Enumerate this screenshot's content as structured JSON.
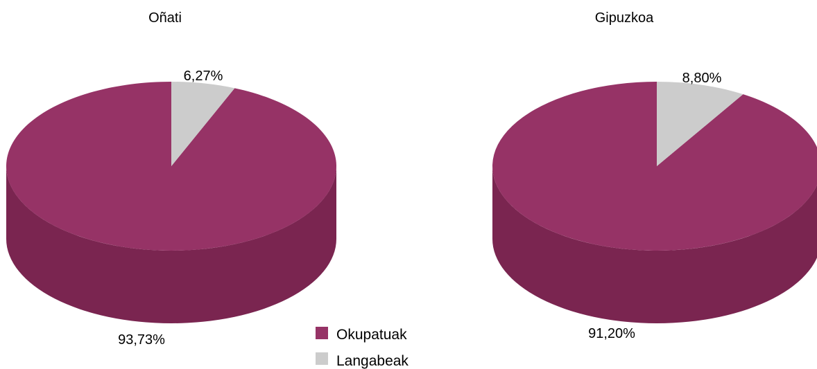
{
  "chart_data": [
    {
      "type": "pie",
      "title": "Oñati",
      "categories": [
        "Langabeak",
        "Okupatuak"
      ],
      "values": [
        6.27,
        93.73
      ],
      "labels": [
        "6,27%",
        "93,73%"
      ]
    },
    {
      "type": "pie",
      "title": "Gipuzkoa",
      "categories": [
        "Langabeak",
        "Okupatuak"
      ],
      "values": [
        8.8,
        91.2
      ],
      "labels": [
        "8,80%",
        "91,20%"
      ]
    }
  ],
  "legend": {
    "placement": "bottom-center",
    "items": [
      {
        "label": "Okupatuak",
        "color": "#963366"
      },
      {
        "label": "Langabeak",
        "color": "#cccccc"
      }
    ]
  },
  "colors": {
    "okupatuak_top": "#963366",
    "okupatuak_side": "#7a2550",
    "langabeak_top": "#cccccc",
    "background": "#ffffff"
  }
}
